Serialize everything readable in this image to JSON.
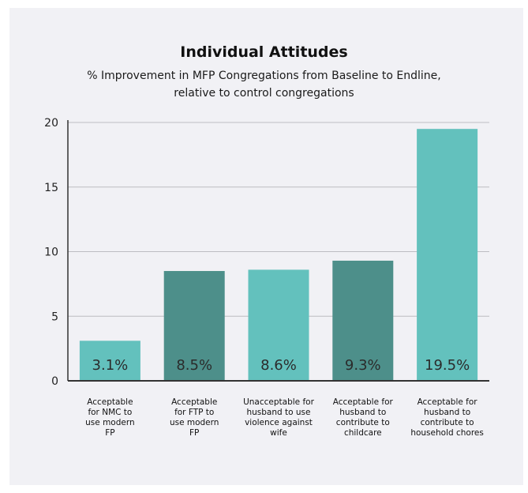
{
  "chart_data": {
    "type": "bar",
    "title": "Individual Attitudes",
    "subtitle": [
      "% Improvement in MFP Congregations from Baseline to Endline,",
      "relative to control congregations"
    ],
    "categories": [
      [
        "Acceptable",
        "for NMC to",
        "use modern",
        "FP"
      ],
      [
        "Acceptable",
        "for FTP to",
        "use modern",
        "FP"
      ],
      [
        "Unacceptable for",
        "husband to use",
        "violence against",
        "wife"
      ],
      [
        "Acceptable for",
        "husband to",
        "contribute to",
        "childcare"
      ],
      [
        "Acceptable for",
        "husband to",
        "contribute to",
        "household chores"
      ]
    ],
    "values": [
      3.1,
      8.5,
      8.6,
      9.3,
      19.5
    ],
    "data_labels": [
      "3.1%",
      "8.5%",
      "8.6%",
      "9.3%",
      "19.5%"
    ],
    "yticks": [
      "0",
      "5",
      "10",
      "15",
      "20"
    ],
    "ylim": [
      0,
      20
    ],
    "grid": true,
    "bar_colors": [
      "#63c1bd",
      "#4d8f8a",
      "#63c1bd",
      "#4d8f8a",
      "#63c1bd"
    ]
  }
}
